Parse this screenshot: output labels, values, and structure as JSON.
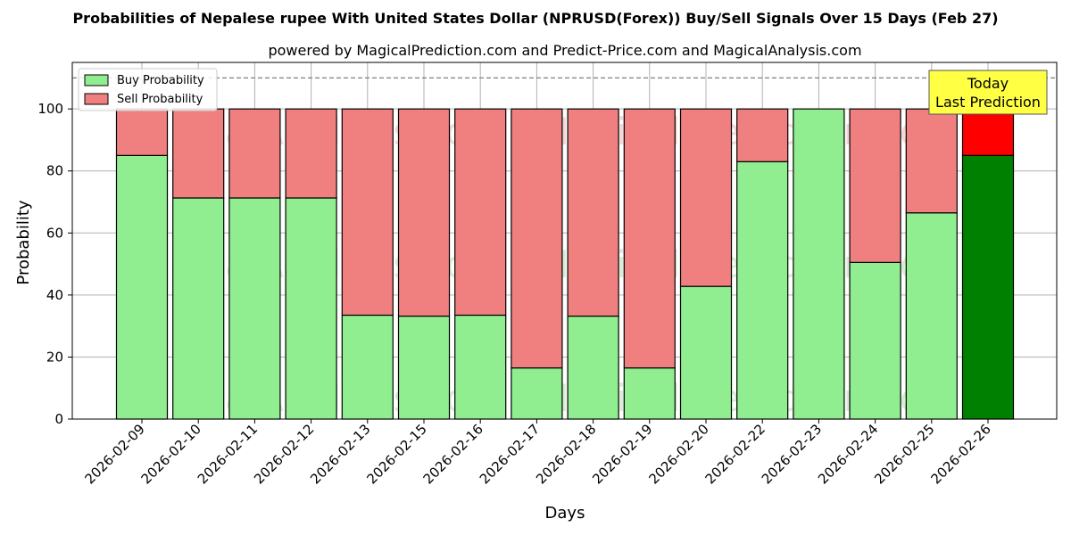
{
  "chart_data": {
    "type": "bar",
    "stacked": true,
    "title": "Probabilities of Nepalese rupee With United States Dollar (NPRUSD(Forex)) Buy/Sell Signals Over 15 Days (Feb 27)",
    "subtitle": "powered by MagicalPrediction.com and Predict-Price.com and MagicalAnalysis.com",
    "xlabel": "Days",
    "ylabel": "Probability",
    "ylim": [
      0,
      115
    ],
    "yticks": [
      0,
      20,
      40,
      60,
      80,
      100
    ],
    "reference_line": 110,
    "grid": true,
    "legend_position": "top-left",
    "categories": [
      "2026-02-09",
      "2026-02-10",
      "2026-02-11",
      "2026-02-12",
      "2026-02-13",
      "2026-02-15",
      "2026-02-16",
      "2026-02-17",
      "2026-02-18",
      "2026-02-19",
      "2026-02-20",
      "2026-02-22",
      "2026-02-23",
      "2026-02-24",
      "2026-02-25",
      "2026-02-26"
    ],
    "series": [
      {
        "name": "Buy Probability",
        "color": "#90ee90",
        "values": [
          85,
          71.3,
          71.3,
          71.3,
          33.5,
          33.2,
          33.5,
          16.5,
          33.2,
          16.5,
          42.8,
          83,
          100,
          50.5,
          66.5,
          85
        ]
      },
      {
        "name": "Sell Probability",
        "color": "#f08080",
        "values": [
          15,
          28.7,
          28.7,
          28.7,
          66.5,
          66.8,
          66.5,
          83.5,
          66.8,
          83.5,
          57.2,
          17,
          0,
          49.5,
          33.5,
          15
        ]
      }
    ],
    "highlight": {
      "index": 15,
      "buy_color": "#008000",
      "sell_color": "#ff0000"
    },
    "annotation": {
      "lines": [
        "Today",
        "Last Prediction"
      ],
      "color": "#ffff44"
    },
    "watermarks": [
      "MagicalAnalysis.com",
      "MagicalPrediction.com"
    ]
  }
}
